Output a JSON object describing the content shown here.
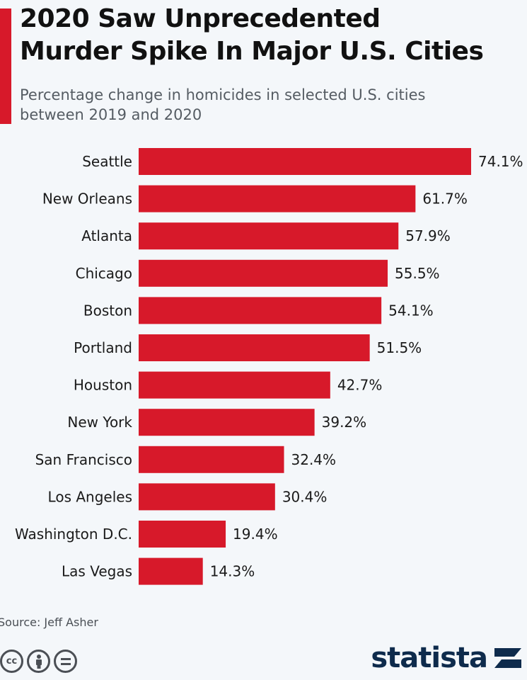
{
  "header": {
    "title": "2020 Saw Unprecedented\nMurder Spike In Major U.S. Cities",
    "subtitle": "Percentage change in homicides in selected U.S. cities\nbetween 2019 and 2020"
  },
  "chart_data": {
    "type": "bar",
    "orientation": "horizontal",
    "categories": [
      "Seattle",
      "New Orleans",
      "Atlanta",
      "Chicago",
      "Boston",
      "Portland",
      "Houston",
      "New York",
      "San Francisco",
      "Los Angeles",
      "Washington D.C.",
      "Las Vegas"
    ],
    "values": [
      74.1,
      61.7,
      57.9,
      55.5,
      54.1,
      51.5,
      42.7,
      39.2,
      32.4,
      30.4,
      19.4,
      14.3
    ],
    "value_labels": [
      "74.1%",
      "61.7%",
      "57.9%",
      "55.5%",
      "54.1%",
      "51.5%",
      "42.7%",
      "39.2%",
      "32.4%",
      "30.4%",
      "19.4%",
      "14.3%"
    ],
    "xlim": [
      0,
      74.1
    ],
    "bar_color": "#d7192a",
    "grid": false,
    "legend": "none"
  },
  "footer": {
    "source": "Source: Jeff Asher",
    "license_icons": [
      "cc-icon",
      "attribution-icon",
      "no-derivatives-icon"
    ],
    "logo": "statista"
  },
  "colors": {
    "accent": "#d7192a",
    "brand": "#0e2b4c",
    "background": "#f4f7fa"
  }
}
